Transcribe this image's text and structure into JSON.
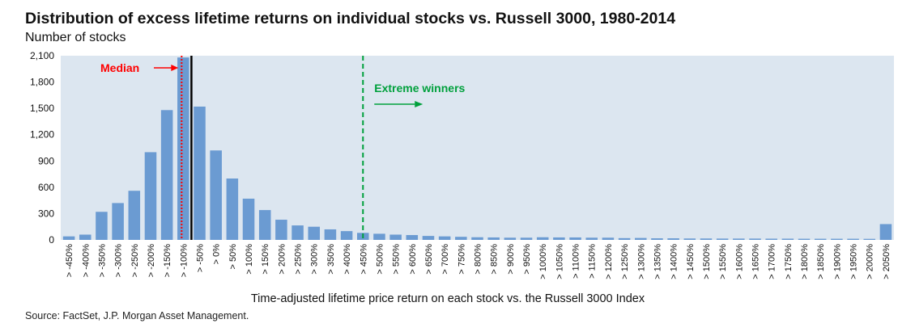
{
  "chart_data": {
    "type": "bar",
    "title": "Distribution of excess lifetime returns on individual stocks vs. Russell 3000, 1980-2014",
    "subtitle": "Number of stocks",
    "xlabel": "Time-adjusted lifetime price return on each stock vs. the Russell 3000 Index",
    "ylabel": "",
    "source": "Source: FactSet, J.P. Morgan Asset Management.",
    "ylim": [
      0,
      2100
    ],
    "yticks": [
      "0",
      "300",
      "600",
      "900",
      "1,200",
      "1,500",
      "1,800",
      "2,100"
    ],
    "ytick_values": [
      0,
      300,
      600,
      900,
      1200,
      1500,
      1800,
      2100
    ],
    "grid": false,
    "categories": [
      "> -450%",
      "> -400%",
      "> -350%",
      "> -300%",
      "> -250%",
      "> -200%",
      "> -150%",
      "> -100%",
      "> -50%",
      "> 0%",
      "> 50%",
      "> 100%",
      "> 150%",
      "> 200%",
      "> 250%",
      "> 300%",
      "> 350%",
      "> 400%",
      "> 450%",
      "> 500%",
      "> 550%",
      "> 600%",
      "> 650%",
      "> 700%",
      "> 750%",
      "> 800%",
      "> 850%",
      "> 900%",
      "> 950%",
      "> 1000%",
      "> 1050%",
      "> 1100%",
      "> 1150%",
      "> 1200%",
      "> 1250%",
      "> 1300%",
      "> 1350%",
      "> 1400%",
      "> 1450%",
      "> 1500%",
      "> 1550%",
      "> 1600%",
      "> 1650%",
      "> 1700%",
      "> 1750%",
      "> 1800%",
      "> 1850%",
      "> 1900%",
      "> 1950%",
      "> 2000%",
      "> 2050%"
    ],
    "values": [
      40,
      60,
      320,
      420,
      560,
      1000,
      1480,
      2080,
      1520,
      1020,
      700,
      470,
      340,
      230,
      165,
      150,
      120,
      100,
      80,
      70,
      60,
      55,
      45,
      40,
      35,
      30,
      28,
      25,
      25,
      30,
      28,
      28,
      25,
      25,
      20,
      22,
      18,
      18,
      16,
      16,
      15,
      15,
      15,
      14,
      14,
      13,
      13,
      13,
      13,
      12,
      180
    ],
    "bar_color": "#6b9bd2",
    "plot_background": "#dce6f0",
    "annotations": [
      {
        "text": "Median",
        "color": "#ff0000",
        "line_style": "dotted",
        "position": 7.5
      },
      {
        "text": "",
        "color": "#000000",
        "line_style": "solid",
        "position": 8.0
      },
      {
        "text": "Extreme winners",
        "color": "#00a03c",
        "line_style": "dashed",
        "position": 18.5
      }
    ]
  }
}
